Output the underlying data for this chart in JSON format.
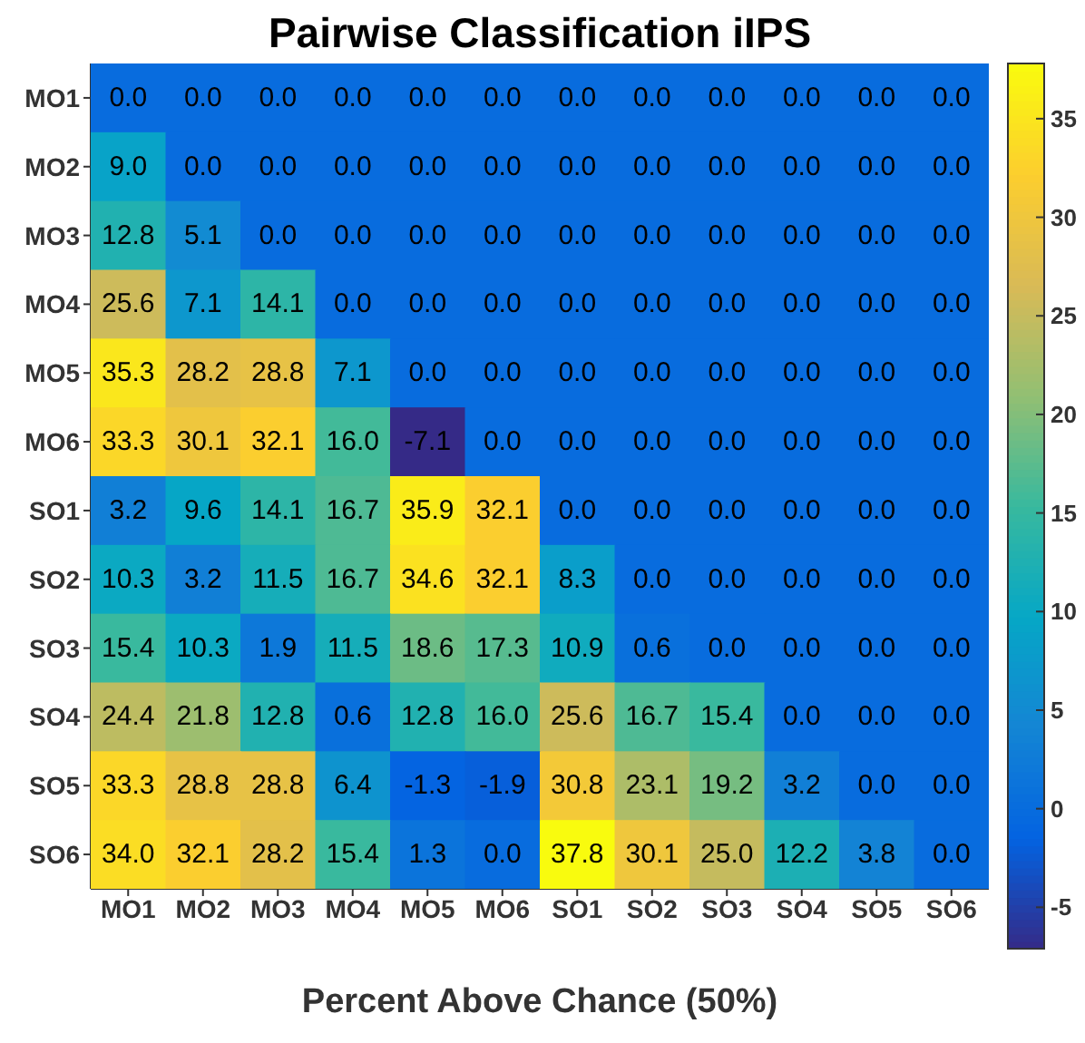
{
  "chart_data": {
    "type": "heatmap",
    "title": "Pairwise Classification iIPS",
    "xlabel": "Percent Above Chance (50%)",
    "categories": [
      "MO1",
      "MO2",
      "MO3",
      "MO4",
      "MO5",
      "MO6",
      "SO1",
      "SO2",
      "SO3",
      "SO4",
      "SO5",
      "SO6"
    ],
    "y_categories": [
      "MO1",
      "MO2",
      "MO3",
      "MO4",
      "MO5",
      "MO6",
      "SO1",
      "SO2",
      "SO3",
      "SO4",
      "SO5",
      "SO6"
    ],
    "cells": [
      [
        0,
        0,
        0,
        0,
        0,
        0,
        0,
        0,
        0,
        0,
        0,
        0
      ],
      [
        9.0,
        0,
        0,
        0,
        0,
        0,
        0,
        0,
        0,
        0,
        0,
        0
      ],
      [
        12.8,
        5.1,
        0,
        0,
        0,
        0,
        0,
        0,
        0,
        0,
        0,
        0
      ],
      [
        25.6,
        7.1,
        14.1,
        0,
        0,
        0,
        0,
        0,
        0,
        0,
        0,
        0
      ],
      [
        35.3,
        28.2,
        28.8,
        7.1,
        0,
        0,
        0,
        0,
        0,
        0,
        0,
        0
      ],
      [
        33.3,
        30.1,
        32.1,
        16.0,
        -7.1,
        0,
        0,
        0,
        0,
        0,
        0,
        0
      ],
      [
        3.2,
        9.6,
        14.1,
        16.7,
        35.9,
        32.1,
        0,
        0,
        0,
        0,
        0,
        0
      ],
      [
        10.3,
        3.2,
        11.5,
        16.7,
        34.6,
        32.1,
        8.3,
        0,
        0,
        0,
        0,
        0
      ],
      [
        15.4,
        10.3,
        1.9,
        11.5,
        18.6,
        17.3,
        10.9,
        0.6,
        0,
        0,
        0,
        0
      ],
      [
        24.4,
        21.8,
        12.8,
        0.6,
        12.8,
        16.0,
        25.6,
        16.7,
        15.4,
        0,
        0,
        0
      ],
      [
        33.3,
        28.8,
        28.8,
        6.4,
        -1.3,
        -1.9,
        30.8,
        23.1,
        19.2,
        3.2,
        0,
        0
      ],
      [
        34.0,
        32.1,
        28.2,
        15.4,
        1.3,
        0.0,
        37.8,
        30.1,
        25.0,
        12.2,
        3.8,
        0.0
      ]
    ],
    "cell_labels": [
      [
        "0.0",
        "0.0",
        "0.0",
        "0.0",
        "0.0",
        "0.0",
        "0.0",
        "0.0",
        "0.0",
        "0.0",
        "0.0",
        "0.0"
      ],
      [
        "9.0",
        "0.0",
        "0.0",
        "0.0",
        "0.0",
        "0.0",
        "0.0",
        "0.0",
        "0.0",
        "0.0",
        "0.0",
        "0.0"
      ],
      [
        "12.8",
        "5.1",
        "0.0",
        "0.0",
        "0.0",
        "0.0",
        "0.0",
        "0.0",
        "0.0",
        "0.0",
        "0.0",
        "0.0"
      ],
      [
        "25.6",
        "7.1",
        "14.1",
        "0.0",
        "0.0",
        "0.0",
        "0.0",
        "0.0",
        "0.0",
        "0.0",
        "0.0",
        "0.0"
      ],
      [
        "35.3",
        "28.2",
        "28.8",
        "7.1",
        "0.0",
        "0.0",
        "0.0",
        "0.0",
        "0.0",
        "0.0",
        "0.0",
        "0.0"
      ],
      [
        "33.3",
        "30.1",
        "32.1",
        "16.0",
        "-7.1",
        "0.0",
        "0.0",
        "0.0",
        "0.0",
        "0.0",
        "0.0",
        "0.0"
      ],
      [
        "3.2",
        "9.6",
        "14.1",
        "16.7",
        "35.9",
        "32.1",
        "0.0",
        "0.0",
        "0.0",
        "0.0",
        "0.0",
        "0.0"
      ],
      [
        "10.3",
        "3.2",
        "11.5",
        "16.7",
        "34.6",
        "32.1",
        "8.3",
        "0.0",
        "0.0",
        "0.0",
        "0.0",
        "0.0"
      ],
      [
        "15.4",
        "10.3",
        "1.9",
        "11.5",
        "18.6",
        "17.3",
        "10.9",
        "0.6",
        "0.0",
        "0.0",
        "0.0",
        "0.0"
      ],
      [
        "24.4",
        "21.8",
        "12.8",
        "0.6",
        "12.8",
        "16.0",
        "25.6",
        "16.7",
        "15.4",
        "0.0",
        "0.0",
        "0.0"
      ],
      [
        "33.3",
        "28.8",
        "28.8",
        "6.4",
        "-1.3",
        "-1.9",
        "30.8",
        "23.1",
        "19.2",
        "3.2",
        "0.0",
        "0.0"
      ],
      [
        "34.0",
        "32.1",
        "28.2",
        "15.4",
        "1.3",
        "0.0",
        "37.8",
        "30.1",
        "25.0",
        "12.2",
        "3.8",
        "0.0"
      ]
    ],
    "clim": [
      -7.1,
      37.8
    ],
    "cticks": [
      -5,
      0,
      5,
      10,
      15,
      20,
      25,
      30,
      35
    ]
  }
}
